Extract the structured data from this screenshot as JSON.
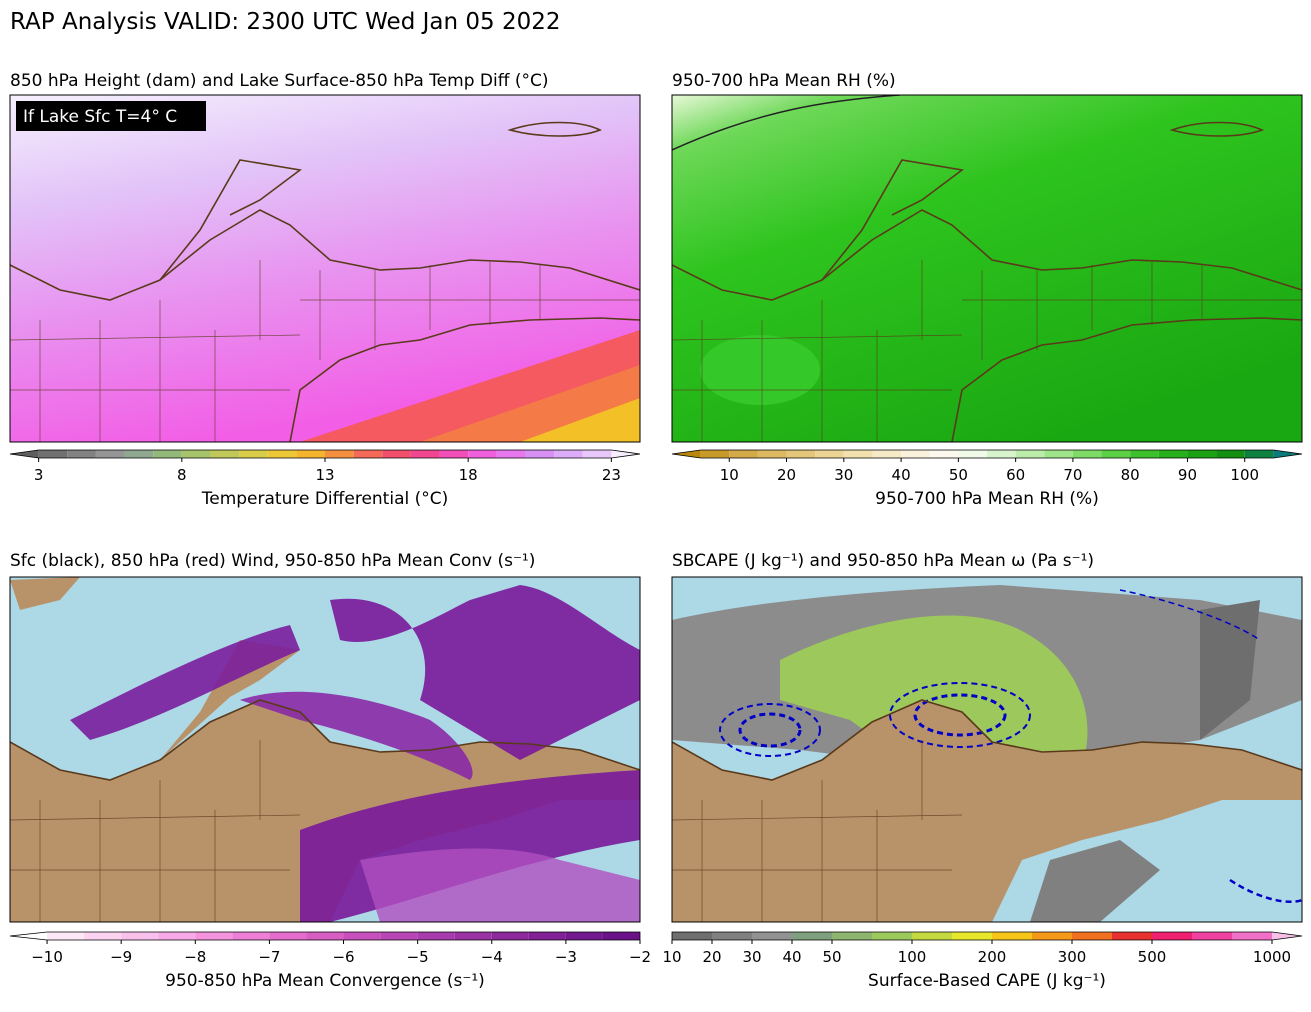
{
  "title": "RAP Analysis VALID: 2300 UTC Wed Jan 05 2022",
  "panels": [
    {
      "title": "850 hPa Height (dam) and Lake Surface-850 hPa Temp Diff (°C)",
      "annotation": "If Lake Sfc T=4° C",
      "colorbar": {
        "label": "Temperature Differential (°C)",
        "lim": [
          2,
          24
        ],
        "extend": "both",
        "ticks": [
          3,
          8,
          13,
          18,
          23
        ],
        "colors": [
          "#5e5e5e",
          "#707070",
          "#828282",
          "#959595",
          "#8fa88f",
          "#93b97a",
          "#a8c46a",
          "#c0c85a",
          "#d8cc48",
          "#ecc838",
          "#f4b430",
          "#f59040",
          "#f46a58",
          "#f0506c",
          "#f04890",
          "#f050b8",
          "#f060dc",
          "#e878f0",
          "#d890f4",
          "#dcacf8",
          "#e8c8fa",
          "#f6eefd"
        ]
      }
    },
    {
      "title": "950-700 hPa Mean RH (%)",
      "colorbar": {
        "label": "950-700 hPa Mean RH (%)",
        "lim": [
          0,
          110
        ],
        "extend": "both",
        "ticks": [
          10,
          20,
          30,
          40,
          50,
          60,
          70,
          80,
          90,
          100
        ],
        "colors": [
          "#b8860b",
          "#c89a2a",
          "#d4aa48",
          "#dcb860",
          "#e4c67a",
          "#ecd494",
          "#f2e0ae",
          "#f6eac6",
          "#faf2dc",
          "#fcf8ee",
          "#f0fae8",
          "#d8f4cc",
          "#bcecaa",
          "#9ee488",
          "#7edc66",
          "#5cd044",
          "#3cc02c",
          "#28b01c",
          "#1ca014",
          "#149010",
          "#0e8040",
          "#0a7a7a"
        ]
      }
    },
    {
      "title": "Sfc (black), 850 hPa (red) Wind, 950-850 hPa Mean Conv (s⁻¹)",
      "colorbar": {
        "label": "950-850 hPa Mean Convergence (s⁻¹)",
        "lim": [
          -10.5,
          -2
        ],
        "extend": "min",
        "ticks": [
          {
            "value": -10,
            "label": "−10"
          },
          {
            "value": -9,
            "label": "−9"
          },
          {
            "value": -8,
            "label": "−8"
          },
          {
            "value": -7,
            "label": "−7"
          },
          {
            "value": -6,
            "label": "−6"
          },
          {
            "value": -5,
            "label": "−5"
          },
          {
            "value": -4,
            "label": "−4"
          },
          {
            "value": -3,
            "label": "−3"
          },
          {
            "value": -2,
            "label": "−2"
          }
        ],
        "colors": [
          "#ffffff",
          "#fde8f8",
          "#fcd4f2",
          "#fac0ec",
          "#f8aae6",
          "#f494de",
          "#ee7ed6",
          "#e46ccc",
          "#d85ec4",
          "#c850bc",
          "#b846b4",
          "#a83cac",
          "#9a32a4",
          "#8c2a9c",
          "#802296",
          "#741a90",
          "#6a1088"
        ]
      }
    },
    {
      "title": "SBCAPE (J kg⁻¹) and 950-850 hPa Mean ω (Pa s⁻¹)",
      "colorbar": {
        "label": "Surface-Based CAPE (J kg⁻¹)",
        "extend": "max",
        "levels": [
          10,
          20,
          30,
          40,
          50,
          75,
          100,
          150,
          200,
          250,
          300,
          400,
          500,
          667,
          833,
          1000
        ],
        "ticks": [
          10,
          20,
          30,
          40,
          50,
          100,
          200,
          300,
          500,
          1000
        ],
        "colors": [
          "#6e6e6e",
          "#808080",
          "#929292",
          "#7fa07f",
          "#8fb46f",
          "#9cc85c",
          "#c4d840",
          "#e6e62a",
          "#f5c518",
          "#f59a18",
          "#f07020",
          "#e83030",
          "#f02070",
          "#f040a0",
          "#f070c8",
          "#f8c0e8"
        ]
      }
    }
  ]
}
